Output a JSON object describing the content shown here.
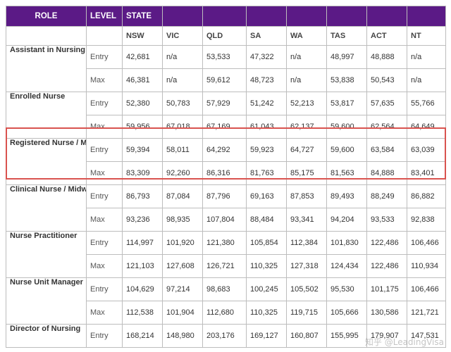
{
  "header": {
    "role": "ROLE",
    "level": "LEVEL",
    "state": "STATE"
  },
  "states": [
    "NSW",
    "VIC",
    "QLD",
    "SA",
    "WA",
    "TAS",
    "ACT",
    "NT"
  ],
  "rows": [
    {
      "role": "Assistant in Nursing",
      "level": "Entry",
      "values": [
        "42,681",
        "n/a",
        "53,533",
        "47,322",
        "n/a",
        "48,997",
        "48,888",
        "n/a"
      ]
    },
    {
      "role": "",
      "level": "Max",
      "values": [
        "46,381",
        "n/a",
        "59,612",
        "48,723",
        "n/a",
        "53,838",
        "50,543",
        "n/a"
      ]
    },
    {
      "role": "Enrolled Nurse",
      "level": "Entry",
      "values": [
        "52,380",
        "50,783",
        "57,929",
        "51,242",
        "52,213",
        "53,817",
        "57,635",
        "55,766"
      ]
    },
    {
      "role": "",
      "level": "Max",
      "values": [
        "59,956",
        "67,018",
        "67,169",
        "61,043",
        "62,137",
        "59,600",
        "62,564",
        "64,649"
      ]
    },
    {
      "role": "Registered Nurse / Midwife",
      "level": "Entry",
      "values": [
        "59,394",
        "58,011",
        "64,292",
        "59,923",
        "64,727",
        "59,600",
        "63,584",
        "63,039"
      ]
    },
    {
      "role": "",
      "level": "Max",
      "values": [
        "83,309",
        "92,260",
        "86,316",
        "81,763",
        "85,175",
        "81,563",
        "84,888",
        "83,401"
      ]
    },
    {
      "role": "Clinical Nurse / Midwives",
      "level": "Entry",
      "values": [
        "86,793",
        "87,084",
        "87,796",
        "69,163",
        "87,853",
        "89,493",
        "88,249",
        "86,882"
      ]
    },
    {
      "role": "",
      "level": "Max",
      "values": [
        "93,236",
        "98,935",
        "107,804",
        "88,484",
        "93,341",
        "94,204",
        "93,533",
        "92,838"
      ]
    },
    {
      "role": "Nurse Practitioner",
      "level": "Entry",
      "values": [
        "114,997",
        "101,920",
        "121,380",
        "105,854",
        "112,384",
        "101,830",
        "122,486",
        "106,466"
      ]
    },
    {
      "role": "",
      "level": "Max",
      "values": [
        "121,103",
        "127,608",
        "126,721",
        "110,325",
        "127,318",
        "124,434",
        "122,486",
        "110,934"
      ]
    },
    {
      "role": "Nurse Unit Manager",
      "level": "Entry",
      "values": [
        "104,629",
        "97,214",
        "98,683",
        "100,245",
        "105,502",
        "95,530",
        "101,175",
        "106,466"
      ]
    },
    {
      "role": "",
      "level": "Max",
      "values": [
        "112,538",
        "101,904",
        "112,680",
        "110,325",
        "119,715",
        "105,666",
        "130,586",
        "121,721"
      ]
    },
    {
      "role": "Director of Nursing",
      "level": "Entry",
      "values": [
        "168,214",
        "148,980",
        "203,176",
        "169,127",
        "160,807",
        "155,995",
        "179,907",
        "147,531"
      ]
    }
  ],
  "highlight_color": "#d9534f",
  "header_color": "#5b1a86",
  "watermark": "知乎 @LeadingVisa"
}
